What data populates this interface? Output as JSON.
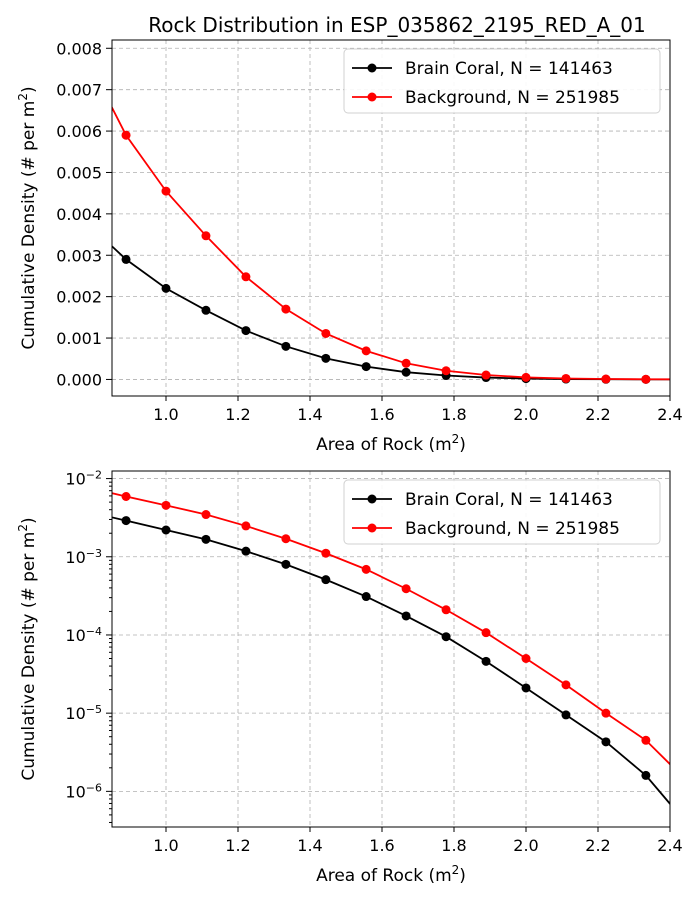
{
  "chart_data": [
    {
      "type": "line",
      "title": "Rock Distribution in ESP_035862_2195_RED_A_01",
      "xlabel": "Area of Rock (m²)",
      "ylabel": "Cumulative Density (# per m²)",
      "xlim": [
        0.85,
        2.4
      ],
      "ylim": [
        -0.0004,
        0.0082
      ],
      "yscale": "linear",
      "grid": true,
      "legend_position": "top-right",
      "xticks": [
        "1.0",
        "1.2",
        "1.4",
        "1.6",
        "1.8",
        "2.0",
        "2.2",
        "2.4"
      ],
      "xtick_values": [
        1.0,
        1.2,
        1.4,
        1.6,
        1.8,
        2.0,
        2.2,
        2.4
      ],
      "yticks": [
        "0.000",
        "0.001",
        "0.002",
        "0.003",
        "0.004",
        "0.005",
        "0.006",
        "0.007",
        "0.008"
      ],
      "ytick_values": [
        0,
        0.001,
        0.002,
        0.003,
        0.004,
        0.005,
        0.006,
        0.007,
        0.008
      ],
      "series": [
        {
          "name": "Brain Coral, N = 141463",
          "color": "#000000",
          "x": [
            0.778,
            0.889,
            1.0,
            1.111,
            1.222,
            1.333,
            1.444,
            1.556,
            1.667,
            1.778,
            1.889,
            2.0,
            2.111,
            2.222,
            2.333,
            2.444
          ],
          "y": [
            0.0038,
            0.0029,
            0.0022,
            0.00167,
            0.00118,
            0.0008,
            0.00051,
            0.00031,
            0.000175,
            9.5e-05,
            4.6e-05,
            2.1e-05,
            9.5e-06,
            4.3e-06,
            1.6e-06,
            4e-07
          ],
          "marker_start": 1,
          "marker_end": 14
        },
        {
          "name": "Background, N = 251985",
          "color": "#ff0000",
          "x": [
            0.778,
            0.889,
            1.0,
            1.111,
            1.222,
            1.333,
            1.444,
            1.556,
            1.667,
            1.778,
            1.889,
            2.0,
            2.111,
            2.222,
            2.333,
            2.444
          ],
          "y": [
            0.0078,
            0.0059,
            0.00455,
            0.00347,
            0.00248,
            0.0017,
            0.00111,
            0.00069,
            0.00039,
            0.00021,
            0.000107,
            5e-05,
            2.3e-05,
            1e-05,
            4.5e-06,
            1.4e-06
          ],
          "marker_start": 1,
          "marker_end": 14
        }
      ]
    },
    {
      "type": "line",
      "title": "",
      "xlabel": "Area of Rock (m²)",
      "ylabel": "Cumulative Density (# per m²)",
      "xlim": [
        0.85,
        2.4
      ],
      "ylim": [
        3.5e-07,
        0.0125
      ],
      "yscale": "log",
      "grid": true,
      "legend_position": "top-right",
      "xticks": [
        "1.0",
        "1.2",
        "1.4",
        "1.6",
        "1.8",
        "2.0",
        "2.2",
        "2.4"
      ],
      "xtick_values": [
        1.0,
        1.2,
        1.4,
        1.6,
        1.8,
        2.0,
        2.2,
        2.4
      ],
      "yticks_major": [
        {
          "value": 1e-06,
          "base": "10",
          "exp": "−6"
        },
        {
          "value": 1e-05,
          "base": "10",
          "exp": "−5"
        },
        {
          "value": 0.0001,
          "base": "10",
          "exp": "−4"
        },
        {
          "value": 0.001,
          "base": "10",
          "exp": "−3"
        },
        {
          "value": 0.01,
          "base": "10",
          "exp": "−2"
        }
      ],
      "series": [
        {
          "name": "Brain Coral, N = 141463",
          "color": "#000000",
          "x": [
            0.778,
            0.889,
            1.0,
            1.111,
            1.222,
            1.333,
            1.444,
            1.556,
            1.667,
            1.778,
            1.889,
            2.0,
            2.111,
            2.222,
            2.333,
            2.444
          ],
          "y": [
            0.0038,
            0.0029,
            0.0022,
            0.00167,
            0.00118,
            0.0008,
            0.00051,
            0.00031,
            0.000175,
            9.5e-05,
            4.6e-05,
            2.1e-05,
            9.5e-06,
            4.3e-06,
            1.6e-06,
            4e-07
          ],
          "marker_start": 1,
          "marker_end": 14
        },
        {
          "name": "Background, N = 251985",
          "color": "#ff0000",
          "x": [
            0.778,
            0.889,
            1.0,
            1.111,
            1.222,
            1.333,
            1.444,
            1.556,
            1.667,
            1.778,
            1.889,
            2.0,
            2.111,
            2.222,
            2.333,
            2.444
          ],
          "y": [
            0.0078,
            0.0059,
            0.00455,
            0.00347,
            0.00248,
            0.0017,
            0.00111,
            0.00069,
            0.00039,
            0.00021,
            0.000107,
            5e-05,
            2.3e-05,
            1e-05,
            4.5e-06,
            1.4e-06
          ],
          "marker_start": 1,
          "marker_end": 14
        }
      ]
    }
  ]
}
